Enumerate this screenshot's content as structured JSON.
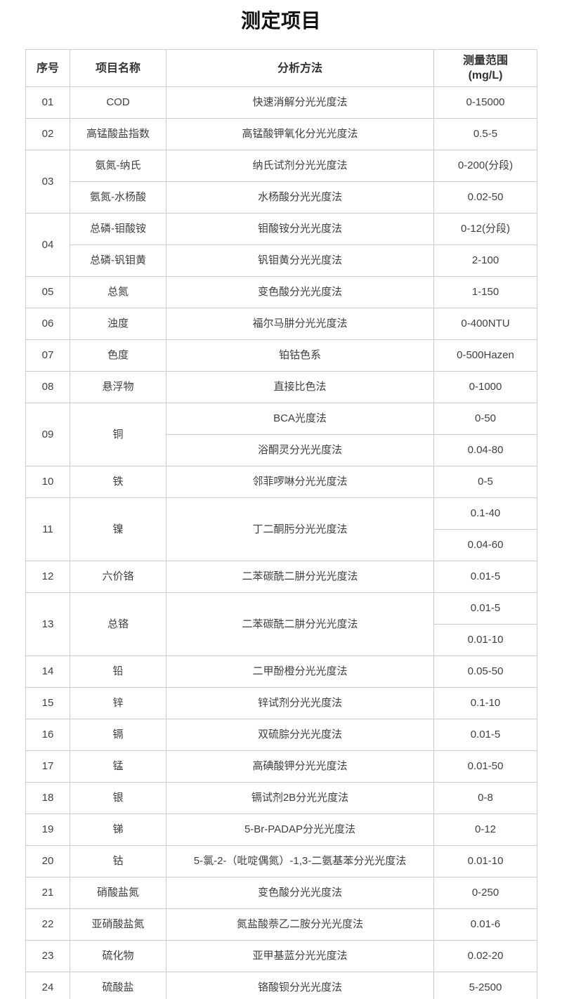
{
  "page": {
    "title": "测定项目"
  },
  "colors": {
    "background": "#ffffff",
    "border": "#cccccc",
    "title_text": "#111111",
    "header_text": "#333333",
    "body_text": "#404040"
  },
  "table": {
    "headers": [
      "序号",
      "项目名称",
      "分析方法",
      "测量范围"
    ],
    "range_unit": "(mg/L)",
    "rows": [
      {
        "num": "01",
        "name": "COD",
        "method": "快速消解分光光度法",
        "range": "0-15000"
      },
      {
        "num": "02",
        "name": "高锰酸盐指数",
        "method": "高锰酸钾氧化分光光度法",
        "range": "0.5-5"
      },
      {
        "num": "03",
        "num_span": 2,
        "name": "氨氮-纳氏",
        "method": "纳氏试剂分光光度法",
        "range": "0-200(分段)"
      },
      {
        "name": "氨氮-水杨酸",
        "method": "水杨酸分光光度法",
        "range": "0.02-50"
      },
      {
        "num": "04",
        "num_span": 2,
        "name": "总磷-钼酸铵",
        "method": "钼酸铵分光光度法",
        "range": "0-12(分段)"
      },
      {
        "name": "总磷-钒钼黄",
        "method": "钒钼黄分光光度法",
        "range": "2-100"
      },
      {
        "num": "05",
        "name": "总氮",
        "method": "变色酸分光光度法",
        "range": "1-150"
      },
      {
        "num": "06",
        "name": "浊度",
        "method": "福尔马肼分光光度法",
        "range": "0-400NTU"
      },
      {
        "num": "07",
        "name": "色度",
        "method": "铂钴色系",
        "range": "0-500Hazen"
      },
      {
        "num": "08",
        "name": "悬浮物",
        "method": "直接比色法",
        "range": "0-1000"
      },
      {
        "num": "09",
        "num_span": 2,
        "name": "铜",
        "name_span": 2,
        "method": "BCA光度法",
        "range": "0-50"
      },
      {
        "method": "浴酮灵分光光度法",
        "range": "0.04-80"
      },
      {
        "num": "10",
        "name": "铁",
        "method": "邻菲啰啉分光光度法",
        "range": "0-5"
      },
      {
        "num": "11",
        "num_span": 2,
        "name": "镍",
        "name_span": 2,
        "method": "丁二酮肟分光光度法",
        "method_span": 2,
        "range": "0.1-40"
      },
      {
        "range": "0.04-60"
      },
      {
        "num": "12",
        "name": "六价铬",
        "method": "二苯碳酰二肼分光光度法",
        "range": "0.01-5"
      },
      {
        "num": "13",
        "num_span": 2,
        "name": "总铬",
        "name_span": 2,
        "method": "二苯碳酰二肼分光光度法",
        "method_span": 2,
        "range": "0.01-5"
      },
      {
        "range": "0.01-10"
      },
      {
        "num": "14",
        "name": "铅",
        "method": "二甲酚橙分光光度法",
        "range": "0.05-50"
      },
      {
        "num": "15",
        "name": "锌",
        "method": "锌试剂分光光度法",
        "range": "0.1-10"
      },
      {
        "num": "16",
        "name": "镉",
        "method": "双硫腙分光光度法",
        "range": "0.01-5"
      },
      {
        "num": "17",
        "name": "锰",
        "method": "高碘酸钾分光光度法",
        "range": "0.01-50"
      },
      {
        "num": "18",
        "name": "银",
        "method": "镉试剂2B分光光度法",
        "range": "0-8"
      },
      {
        "num": "19",
        "name": "锑",
        "method": "5-Br-PADAP分光光度法",
        "range": "0-12"
      },
      {
        "num": "20",
        "name": "钴",
        "method": "5-氯-2-（吡啶偶氮）-1,3-二氨基苯分光光度法",
        "range": "0.01-10"
      },
      {
        "num": "21",
        "name": "硝酸盐氮",
        "method": "变色酸分光光度法",
        "range": "0-250"
      },
      {
        "num": "22",
        "name": "亚硝酸盐氮",
        "method": "氮盐酸萘乙二胺分光光度法",
        "range": "0.01-6"
      },
      {
        "num": "23",
        "name": "硫化物",
        "method": "亚甲基蓝分光光度法",
        "range": "0.02-20"
      },
      {
        "num": "24",
        "name": "硫酸盐",
        "method": "铬酸钡分光光度法",
        "range": "5-2500"
      }
    ]
  }
}
